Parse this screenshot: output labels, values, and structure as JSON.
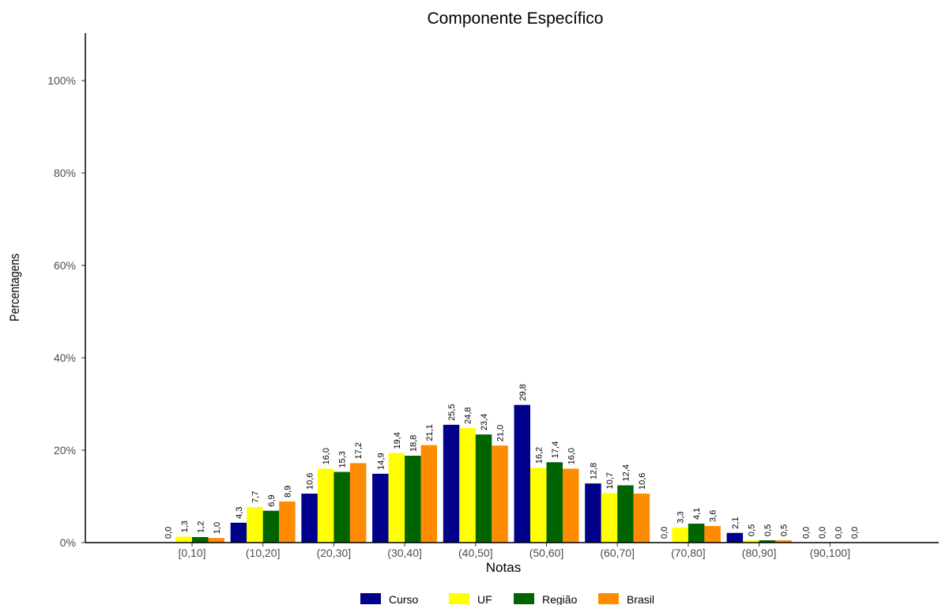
{
  "chart_data": {
    "type": "bar",
    "title": "Componente Específico",
    "xlabel": "Notas",
    "ylabel": "Percentagens",
    "categories": [
      "[0,10]",
      "(10,20]",
      "(20,30]",
      "(30,40]",
      "(40,50]",
      "(50,60]",
      "(60,70]",
      "(70,80]",
      "(80,90]",
      "(90,100]"
    ],
    "series": [
      {
        "name": "Curso",
        "color": "#00008b",
        "values": [
          0.0,
          4.3,
          10.6,
          14.9,
          25.5,
          29.8,
          12.8,
          0.0,
          2.1,
          0.0
        ]
      },
      {
        "name": "UF",
        "color": "#ffff00",
        "values": [
          1.3,
          7.7,
          16.0,
          19.4,
          24.8,
          16.2,
          10.7,
          3.3,
          0.5,
          0.0
        ]
      },
      {
        "name": "Região",
        "color": "#006400",
        "values": [
          1.2,
          6.9,
          15.3,
          18.8,
          23.4,
          17.4,
          12.4,
          4.1,
          0.5,
          0.0
        ]
      },
      {
        "name": "Brasil",
        "color": "#ff8c00",
        "values": [
          1.0,
          8.9,
          17.2,
          21.1,
          21.0,
          16.0,
          10.6,
          3.6,
          0.5,
          0.0
        ]
      }
    ],
    "yticks": [
      "0%",
      "20%",
      "40%",
      "60%",
      "80%",
      "100%"
    ],
    "ylim": [
      0,
      100
    ],
    "grid": false,
    "legend_position": "bottom"
  }
}
